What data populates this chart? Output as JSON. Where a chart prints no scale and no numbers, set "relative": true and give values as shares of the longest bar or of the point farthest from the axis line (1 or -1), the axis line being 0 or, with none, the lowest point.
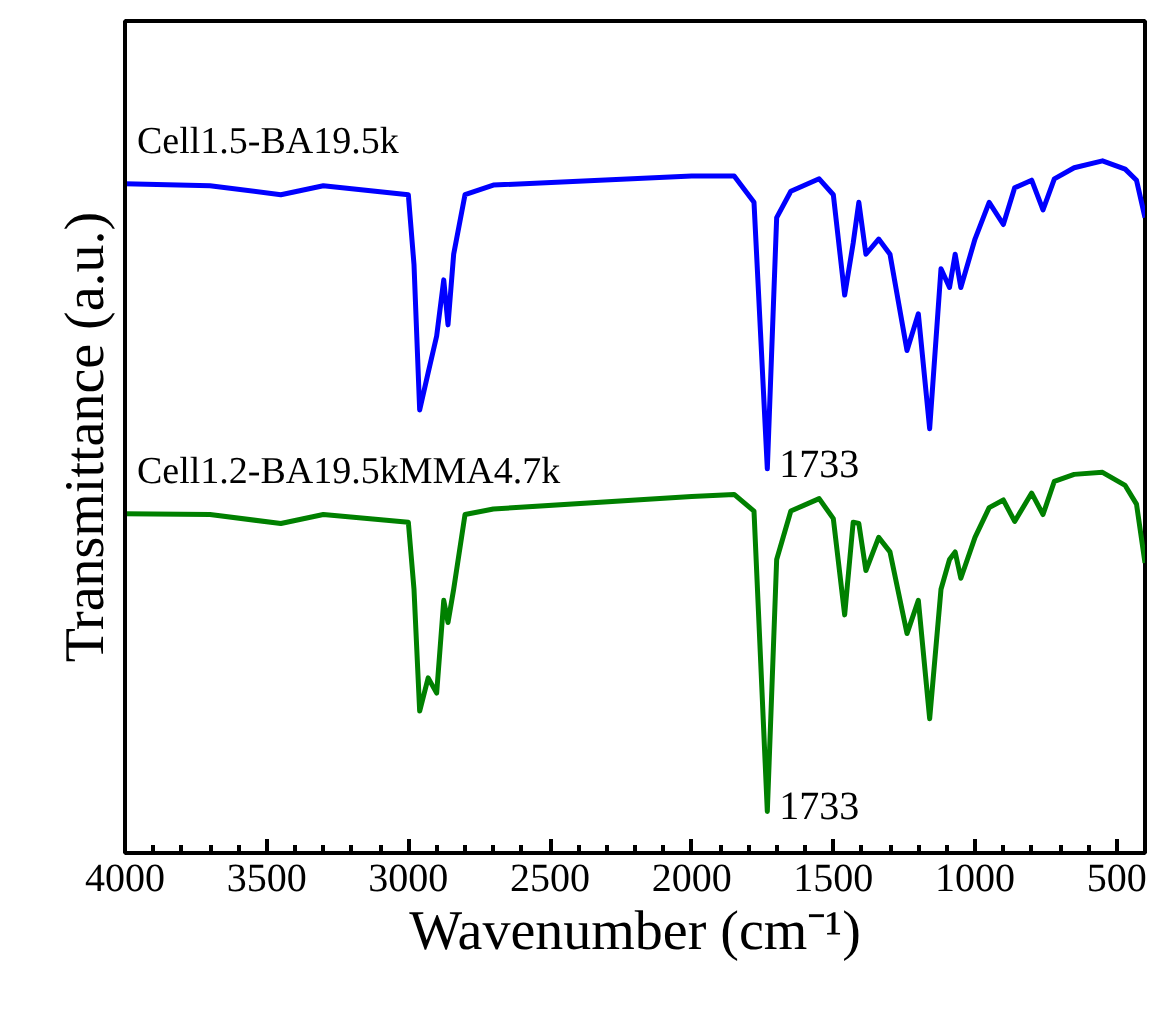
{
  "chart_data": {
    "type": "line",
    "relative": true,
    "xlabel": "Wavenumber (cm⁻¹)",
    "ylabel": "Transmittance (a.u.)",
    "xlim": [
      4000,
      400
    ],
    "xticks": [
      4000,
      3500,
      3000,
      2500,
      2000,
      1500,
      1000,
      500
    ],
    "tick_labels": "x",
    "grid": false,
    "x": [
      4000,
      3700,
      3450,
      3300,
      3000,
      2980,
      2960,
      2930,
      2900,
      2875,
      2860,
      2840,
      2800,
      2700,
      2000,
      1850,
      1780,
      1733,
      1700,
      1650,
      1550,
      1500,
      1460,
      1430,
      1410,
      1385,
      1340,
      1300,
      1240,
      1200,
      1160,
      1120,
      1090,
      1070,
      1050,
      1000,
      950,
      900,
      860,
      800,
      760,
      720,
      650,
      550,
      470,
      430,
      400
    ],
    "series": [
      {
        "name": "Cell1.5-BA19.5k",
        "color": "#0000ff",
        "values": [
          0.967,
          0.964,
          0.951,
          0.964,
          0.951,
          0.85,
          0.64,
          0.694,
          0.747,
          0.828,
          0.763,
          0.865,
          0.951,
          0.965,
          0.978,
          0.978,
          0.94,
          0.555,
          0.918,
          0.956,
          0.974,
          0.951,
          0.806,
          0.881,
          0.94,
          0.865,
          0.887,
          0.865,
          0.726,
          0.779,
          0.613,
          0.844,
          0.817,
          0.865,
          0.817,
          0.887,
          0.94,
          0.908,
          0.961,
          0.972,
          0.929,
          0.974,
          0.99,
          1.0,
          0.988,
          0.972,
          0.918
        ]
      },
      {
        "name": "Cell1.2-BA19.5kMMA4.7k",
        "color": "#008000",
        "values": [
          0.49,
          0.489,
          0.476,
          0.489,
          0.478,
          0.381,
          0.205,
          0.253,
          0.231,
          0.365,
          0.333,
          0.381,
          0.489,
          0.497,
          0.515,
          0.518,
          0.494,
          0.06,
          0.424,
          0.494,
          0.512,
          0.483,
          0.344,
          0.478,
          0.476,
          0.408,
          0.456,
          0.435,
          0.317,
          0.365,
          0.194,
          0.381,
          0.424,
          0.435,
          0.397,
          0.456,
          0.499,
          0.51,
          0.479,
          0.52,
          0.489,
          0.537,
          0.547,
          0.55,
          0.531,
          0.504,
          0.419
        ]
      }
    ],
    "annotations": [
      {
        "text": "1733",
        "x": 1733,
        "y": 0.555
      },
      {
        "text": "1733",
        "x": 1733,
        "y": 0.06
      }
    ]
  }
}
